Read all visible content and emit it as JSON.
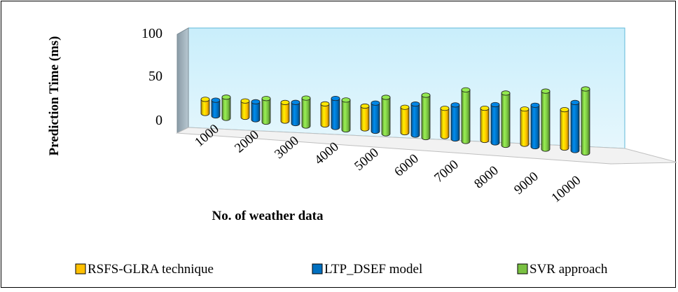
{
  "chart_data": {
    "type": "bar",
    "categories": [
      "1000",
      "2000",
      "3000",
      "4000",
      "5000",
      "6000",
      "7000",
      "8000",
      "9000",
      "10000"
    ],
    "series": [
      {
        "name": "RSFS-GLRA technique",
        "values": [
          18,
          20,
          22,
          24,
          25,
          27,
          29,
          32,
          34,
          36
        ],
        "color": "#FFC000"
      },
      {
        "name": "LTP_DSEF model",
        "values": [
          20,
          22,
          25,
          33,
          31,
          33,
          35,
          38,
          40,
          45
        ],
        "color": "#0070C0"
      },
      {
        "name": "SVR approach",
        "values": [
          27,
          29,
          33,
          34,
          40,
          45,
          53,
          52,
          56,
          60
        ],
        "color": "#7AC142"
      }
    ],
    "xlabel": "No. of weather data",
    "ylabel": "Prediction Time (ms)",
    "yticks": [
      0,
      50,
      100
    ],
    "ylim": [
      0,
      100
    ],
    "legend_position": "bottom",
    "projection": "3d"
  }
}
